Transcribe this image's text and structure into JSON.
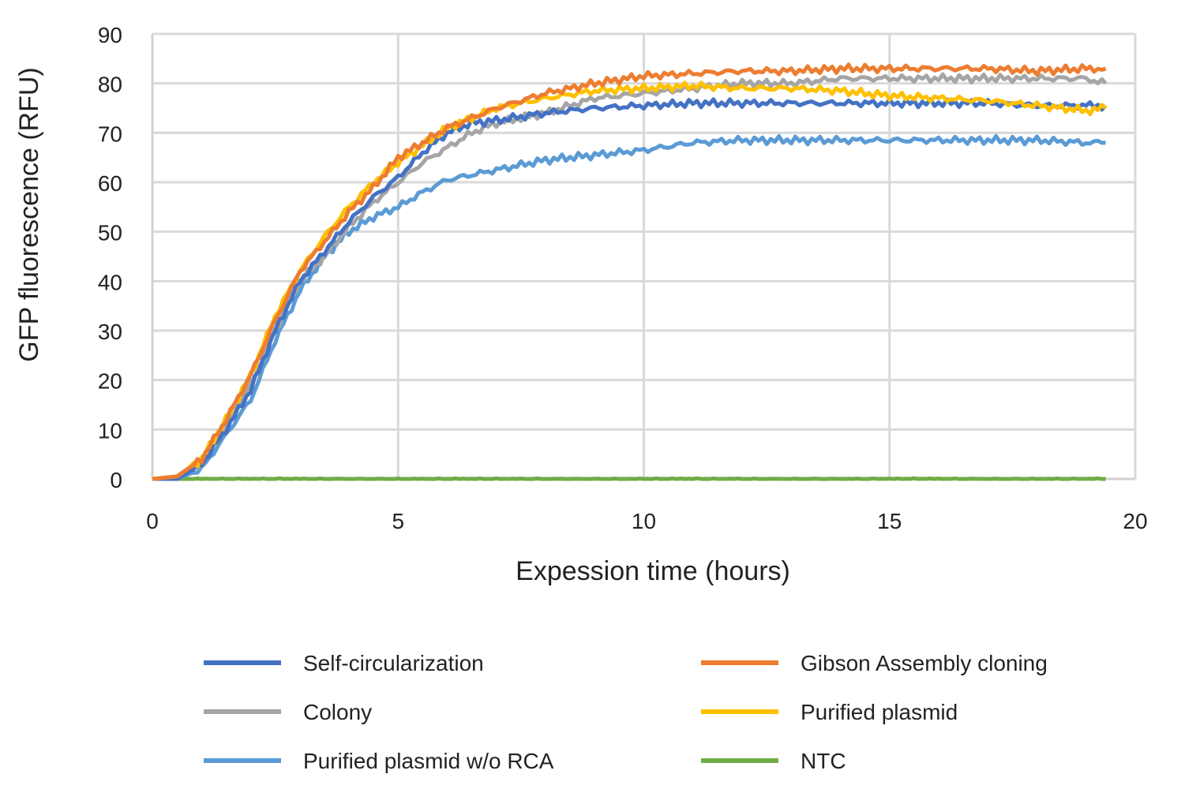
{
  "chart_data": {
    "type": "line",
    "title": "",
    "xlabel": "Expession time (hours)",
    "ylabel": "GFP fluorescence (RFU)",
    "xlim": [
      0,
      20
    ],
    "ylim": [
      0,
      90
    ],
    "xticks": [
      "0",
      "5",
      "10",
      "15",
      "20"
    ],
    "yticks": [
      "0",
      "10",
      "20",
      "30",
      "40",
      "50",
      "60",
      "70",
      "80",
      "90"
    ],
    "grid": true,
    "legend_position": "bottom",
    "series": [
      {
        "name": "Self-circularization",
        "color": "#4472C4",
        "x": [
          0,
          0.5,
          1,
          1.5,
          2,
          2.5,
          3,
          3.5,
          4,
          4.5,
          5,
          5.5,
          6,
          6.5,
          7,
          8,
          9,
          10,
          11,
          12,
          13,
          14,
          15,
          16,
          17,
          18,
          19,
          19.4
        ],
        "y": [
          0,
          0,
          3,
          10,
          18,
          30,
          40,
          46,
          52,
          57,
          61,
          66,
          70,
          72,
          72.5,
          74,
          75,
          75.5,
          76,
          76,
          76,
          76,
          76,
          76,
          76,
          75.5,
          75.5,
          75.5
        ]
      },
      {
        "name": "Gibson Assembly cloning",
        "color": "#ED7D31",
        "x": [
          0,
          0.5,
          1,
          1.5,
          2,
          2.5,
          3,
          3.5,
          4,
          4.5,
          5,
          6,
          7,
          8,
          9,
          10,
          11,
          12,
          13,
          14,
          15,
          16,
          17,
          18,
          19,
          19.4
        ],
        "y": [
          0,
          0.5,
          4,
          12,
          21,
          32,
          42,
          48,
          54,
          59,
          65,
          71,
          75,
          78,
          80,
          81.5,
          82,
          82.5,
          82.5,
          83,
          83,
          83,
          83,
          82.5,
          83,
          83
        ]
      },
      {
        "name": "Colony",
        "color": "#A5A5A5",
        "x": [
          0,
          0.5,
          1,
          1.5,
          2,
          2.5,
          3,
          3.5,
          4,
          4.5,
          5,
          5.5,
          6,
          6.5,
          7,
          8,
          9,
          10,
          11,
          12,
          13,
          14,
          15,
          16,
          17,
          18,
          19,
          19.4
        ],
        "y": [
          0,
          0,
          3,
          11,
          19,
          30,
          40,
          45,
          51,
          56,
          60,
          64,
          67,
          70,
          72,
          74,
          77,
          78,
          79,
          80,
          80,
          81,
          81,
          81,
          81,
          81,
          81,
          80
        ]
      },
      {
        "name": "Purified plasmid",
        "color": "#FFC000",
        "x": [
          0,
          0.5,
          1,
          1.5,
          2,
          2.5,
          3,
          3.5,
          4,
          4.5,
          5,
          6,
          7,
          8,
          9,
          10,
          11,
          12,
          13,
          14,
          15,
          16,
          17,
          18,
          19,
          19.4
        ],
        "y": [
          0,
          0.5,
          4,
          12,
          21,
          33,
          42,
          49,
          55,
          60,
          64,
          71,
          75,
          77,
          78.5,
          79,
          79.5,
          79,
          79,
          78.5,
          77.5,
          77,
          76.5,
          75.5,
          74.5,
          75
        ]
      },
      {
        "name": "Purified plasmid w/o RCA",
        "color": "#5B9BD5",
        "x": [
          0,
          0.5,
          1,
          1.5,
          2,
          2.5,
          3,
          3.5,
          4,
          4.5,
          5,
          5.5,
          6,
          7,
          8,
          9,
          10,
          11,
          12,
          13,
          14,
          15,
          16,
          17,
          18,
          19,
          19.4
        ],
        "y": [
          0,
          0,
          2,
          9,
          16,
          28,
          38,
          45,
          50,
          53,
          55,
          58,
          60.5,
          62.5,
          64.5,
          65.5,
          66.5,
          68,
          68.5,
          68.5,
          68.5,
          68.5,
          68.5,
          68.5,
          68.5,
          68,
          68
        ]
      },
      {
        "name": "NTC",
        "color": "#70AD47",
        "x": [
          0,
          5,
          10,
          15,
          19.4
        ],
        "y": [
          0,
          0,
          0,
          0,
          0
        ]
      }
    ]
  }
}
